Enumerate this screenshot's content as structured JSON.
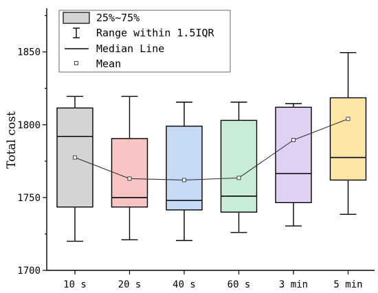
{
  "chart_data": {
    "type": "box",
    "title": "",
    "xlabel": "",
    "ylabel": "Total cost",
    "ylim": [
      1700,
      1880
    ],
    "yticks": [
      1700,
      1750,
      1800,
      1850
    ],
    "categories": [
      "10 s",
      "20 s",
      "40 s",
      "60 s",
      "3 min",
      "5 min"
    ],
    "boxes": [
      {
        "min": 1720,
        "q1": 1743.5,
        "median": 1792,
        "q3": 1811.5,
        "max": 1819.5,
        "mean": 1777.5,
        "color": "#d4d4d4"
      },
      {
        "min": 1721,
        "q1": 1743.5,
        "median": 1750,
        "q3": 1790.5,
        "max": 1819.5,
        "mean": 1763,
        "color": "#f8c4c4"
      },
      {
        "min": 1720.5,
        "q1": 1741.5,
        "median": 1748,
        "q3": 1799,
        "max": 1815.5,
        "mean": 1762,
        "color": "#c6d9f5"
      },
      {
        "min": 1726,
        "q1": 1740,
        "median": 1751,
        "q3": 1803,
        "max": 1815.5,
        "mean": 1763.5,
        "color": "#c8ecd6"
      },
      {
        "min": 1730.5,
        "q1": 1746.5,
        "median": 1766.5,
        "q3": 1812,
        "max": 1814.5,
        "mean": 1789.5,
        "color": "#dfd0f4"
      },
      {
        "min": 1738.5,
        "q1": 1762,
        "median": 1777.5,
        "q3": 1818.5,
        "max": 1849.5,
        "mean": 1804,
        "color": "#fde6a6"
      }
    ],
    "legend": {
      "position": "top-left",
      "entries": [
        {
          "label": "25%~75%",
          "kind": "box",
          "color": "#d4d4d4"
        },
        {
          "label": "Range within 1.5IQR",
          "kind": "whisker"
        },
        {
          "label": "Median Line",
          "kind": "median"
        },
        {
          "label": "Mean",
          "kind": "mean"
        }
      ]
    },
    "grid": false
  }
}
